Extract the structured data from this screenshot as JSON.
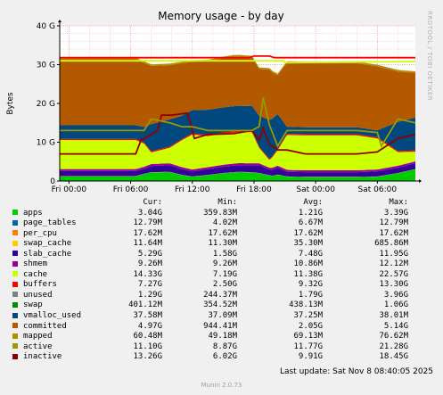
{
  "chart_data": {
    "type": "area",
    "title": "Memory usage - by day",
    "ylabel": "Bytes",
    "xlabel": "",
    "y_ticks": [
      "0",
      "10 G",
      "20 G",
      "30 G",
      "40 G"
    ],
    "y_unit": "bytes",
    "ylim": [
      0,
      40000000000
    ],
    "x_ticks": [
      "Fri 00:00",
      "Fri 06:00",
      "Fri 12:00",
      "Fri 18:00",
      "Sat 00:00",
      "Sat 06:00"
    ],
    "x_hours": [
      0,
      6,
      12,
      18,
      24,
      30
    ],
    "x_range_hours": [
      -0.9,
      33.7
    ],
    "grid": true,
    "stacked_series": [
      {
        "name": "apps",
        "color": "#00cc00",
        "x": [
          -0.9,
          6.5,
          7.3,
          8.0,
          9.8,
          11.0,
          12.0,
          13.5,
          15.0,
          16.5,
          17.8,
          18.5,
          19.8,
          20.3,
          21.2,
          23.0,
          28.0,
          30.0,
          32.0,
          33.7
        ],
        "y": [
          1.2,
          1.2,
          1.8,
          2.2,
          2.3,
          1.5,
          1.1,
          1.5,
          2.0,
          2.3,
          2.2,
          2.0,
          1.3,
          1.6,
          1.1,
          1.0,
          1.0,
          1.1,
          2.0,
          3.0
        ]
      },
      {
        "name": "page_tables",
        "color": "#0066b3",
        "x": [
          -0.9,
          33.7
        ],
        "y": [
          0.02,
          0.02
        ]
      },
      {
        "name": "per_cpu",
        "color": "#ff8000",
        "x": [
          -0.9,
          33.7
        ],
        "y": [
          0.02,
          0.02
        ]
      },
      {
        "name": "swap_cache",
        "color": "#ffcc00",
        "x": [
          -0.9,
          33.7
        ],
        "y": [
          0.03,
          0.03
        ]
      },
      {
        "name": "slab_cache",
        "color": "#330099",
        "x": [
          -0.9,
          7.3,
          8.0,
          9.8,
          11.0,
          12.0,
          13.5,
          16.0,
          17.8,
          18.5,
          19.5,
          20.3,
          21.2,
          23.0,
          28.0,
          30.0,
          32.5,
          33.7
        ],
        "y": [
          1.3,
          1.3,
          1.6,
          1.7,
          1.5,
          1.3,
          1.5,
          1.7,
          1.8,
          2.0,
          1.4,
          1.8,
          1.2,
          1.2,
          1.2,
          1.3,
          1.4,
          1.5
        ]
      },
      {
        "name": "shmem",
        "color": "#990099",
        "x": [
          -0.9,
          33.7
        ],
        "y": [
          0.5,
          0.5
        ]
      },
      {
        "name": "cache",
        "color": "#ccff00",
        "x": [
          -0.9,
          6.5,
          7.3,
          8.0,
          9.8,
          11.0,
          12.0,
          13.5,
          16.0,
          17.8,
          18.5,
          19.5,
          20.3,
          21.2,
          23.0,
          28.0,
          30.0,
          32.0,
          33.7
        ],
        "y": [
          7.5,
          7.5,
          6.0,
          3.0,
          4.0,
          7.0,
          9.0,
          8.0,
          8.0,
          8.0,
          4.0,
          2.0,
          4.0,
          9.0,
          9.0,
          9.0,
          8.0,
          3.5,
          2.5
        ]
      },
      {
        "name": "buffers",
        "color": "#ff0000",
        "x": [
          -0.9,
          33.7
        ],
        "y": [
          0.3,
          0.3
        ]
      },
      {
        "name": "unused",
        "color": "#808080",
        "x": [
          -0.9,
          33.7
        ],
        "y": [
          0.0,
          0.0
        ]
      },
      {
        "name": "swap",
        "color": "#008f00",
        "x": [
          -0.9,
          33.7
        ],
        "y": [
          0.0,
          0.0
        ]
      },
      {
        "name": "vmalloc_used",
        "color": "#00487d",
        "x": [
          -0.9,
          6.5,
          7.3,
          8.0,
          9.8,
          11.0,
          12.0,
          13.5,
          16.0,
          17.8,
          18.5,
          19.5,
          20.3,
          21.2,
          23.0,
          28.0,
          30.0,
          32.0,
          33.7
        ],
        "y": [
          3.5,
          3.5,
          4.0,
          7.0,
          7.0,
          6.0,
          6.0,
          6.5,
          6.5,
          6.5,
          8.0,
          10.0,
          9.0,
          1.8,
          1.8,
          1.8,
          1.8,
          7.5,
          8.5
        ]
      },
      {
        "name": "committed",
        "color": "#b35a00",
        "x": [
          -0.9,
          6.5,
          7.3,
          8.0,
          9.8,
          11.0,
          12.0,
          13.5,
          16.0,
          17.8,
          18.5,
          19.5,
          20.3,
          21.2,
          23.0,
          28.0,
          30.0,
          32.0,
          33.7
        ],
        "y": [
          17.0,
          17.0,
          16.5,
          15.0,
          14.0,
          13.5,
          12.5,
          12.5,
          12.8,
          12.5,
          12.0,
          13.0,
          10.0,
          16.5,
          16.5,
          16.5,
          16.5,
          13.0,
          11.5
        ]
      },
      {
        "name": "mapped",
        "color": "#b38f00",
        "x": [
          -0.9,
          6.5,
          12.0,
          18.0,
          21.0,
          33.7
        ],
        "y": [
          0.4,
          0.4,
          0.4,
          0.4,
          0.4,
          0.4
        ]
      }
    ],
    "line_series": [
      {
        "name": "unused",
        "color": "#ccff00",
        "x": [
          -0.9,
          20.9,
          21.0,
          33.7
        ],
        "y": [
          31.0,
          31.0,
          30.5,
          30.8
        ]
      },
      {
        "name": "swap",
        "color": "#ff0000",
        "x": [
          -0.9,
          17.5,
          18.0,
          19.5,
          20.0,
          33.7
        ],
        "y": [
          31.8,
          31.8,
          32.2,
          32.2,
          31.8,
          31.8
        ]
      },
      {
        "name": "active",
        "color": "#8f0000",
        "x": [
          -0.9,
          6.5,
          7.0,
          8.0,
          8.6,
          9.0,
          10.0,
          11.5,
          11.8,
          12.2,
          13.5,
          16.0,
          17.8,
          18.5,
          18.9,
          19.5,
          20.3,
          21.2,
          23.0,
          28.0,
          30.0,
          32.0,
          33.7
        ],
        "y": [
          7.0,
          7.0,
          10.5,
          12.0,
          13.0,
          17.0,
          17.0,
          17.5,
          15.0,
          11.0,
          12.0,
          12.2,
          13.0,
          10.5,
          13.5,
          9.5,
          8.0,
          8.0,
          7.0,
          7.0,
          7.5,
          11.0,
          12.0
        ]
      },
      {
        "name": "inactive",
        "color": "#999900",
        "x": [
          -0.9,
          6.5,
          7.3,
          8.0,
          9.8,
          11.0,
          12.0,
          13.5,
          16.0,
          17.8,
          18.5,
          18.9,
          19.5,
          20.3,
          21.2,
          23.0,
          28.0,
          30.0,
          30.4,
          32.0,
          33.7
        ],
        "y": [
          13.0,
          13.0,
          13.0,
          16.0,
          15.0,
          14.0,
          14.0,
          13.0,
          13.0,
          13.0,
          14.0,
          21.5,
          14.5,
          9.0,
          13.0,
          13.0,
          13.0,
          12.5,
          9.0,
          16.0,
          15.0
        ]
      }
    ]
  },
  "legend": {
    "headers": {
      "cur": "Cur:",
      "min": "Min:",
      "avg": "Avg:",
      "max": "Max:"
    },
    "rows": [
      {
        "name": "apps",
        "color": "#00cc00",
        "cur": "3.04G",
        "min": "359.83M",
        "avg": "1.21G",
        "max": "3.39G"
      },
      {
        "name": "page_tables",
        "color": "#0066b3",
        "cur": "12.79M",
        "min": "4.02M",
        "avg": "6.67M",
        "max": "12.79M"
      },
      {
        "name": "per_cpu",
        "color": "#ff8000",
        "cur": "17.62M",
        "min": "17.62M",
        "avg": "17.62M",
        "max": "17.62M"
      },
      {
        "name": "swap_cache",
        "color": "#ffcc00",
        "cur": "11.64M",
        "min": "11.30M",
        "avg": "35.30M",
        "max": "685.86M"
      },
      {
        "name": "slab_cache",
        "color": "#330099",
        "cur": "5.29G",
        "min": "1.58G",
        "avg": "7.48G",
        "max": "11.95G"
      },
      {
        "name": "shmem",
        "color": "#990099",
        "cur": "9.26M",
        "min": "9.26M",
        "avg": "10.86M",
        "max": "12.12M"
      },
      {
        "name": "cache",
        "color": "#ccff00",
        "cur": "14.33G",
        "min": "7.19G",
        "avg": "11.38G",
        "max": "22.57G"
      },
      {
        "name": "buffers",
        "color": "#ff0000",
        "cur": "7.27G",
        "min": "2.50G",
        "avg": "9.32G",
        "max": "13.30G"
      },
      {
        "name": "unused",
        "color": "#808080",
        "cur": "1.29G",
        "min": "244.37M",
        "avg": "1.79G",
        "max": "3.96G"
      },
      {
        "name": "swap",
        "color": "#008f00",
        "cur": "401.12M",
        "min": "354.52M",
        "avg": "438.13M",
        "max": "1.06G"
      },
      {
        "name": "vmalloc_used",
        "color": "#00487d",
        "cur": "37.58M",
        "min": "37.09M",
        "avg": "37.25M",
        "max": "38.01M"
      },
      {
        "name": "committed",
        "color": "#b35a00",
        "cur": "4.97G",
        "min": "944.41M",
        "avg": "2.05G",
        "max": "5.14G"
      },
      {
        "name": "mapped",
        "color": "#b38f00",
        "cur": "60.48M",
        "min": "49.18M",
        "avg": "69.13M",
        "max": "76.62M"
      },
      {
        "name": "active",
        "color": "#999900",
        "cur": "11.10G",
        "min": "8.87G",
        "avg": "11.77G",
        "max": "21.28G"
      },
      {
        "name": "inactive",
        "color": "#8f0000",
        "cur": "13.26G",
        "min": "6.02G",
        "avg": "9.91G",
        "max": "18.45G"
      }
    ]
  },
  "footer": {
    "last_update": "Last update:  Sat Nov  8 08:40:05 2025",
    "version": "Munin 2.0.73",
    "side": "RRDTOOL / TOBI OETIKER"
  }
}
